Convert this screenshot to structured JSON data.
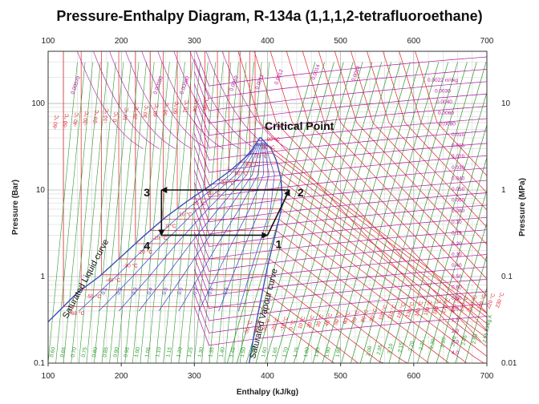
{
  "chart_data": {
    "type": "line",
    "title": "Pressure-Enthalpy Diagram, R-134a (1,1,1,2-tetrafluoroethane)",
    "xlabel": "Enthalpy (kJ/kg)",
    "ylabel": "Pressure (Bar)",
    "y2label": "Pressure (MPa)",
    "xlim": [
      100,
      700
    ],
    "ylim_bar": [
      0.1,
      400
    ],
    "y_scale": "log",
    "x_ticks": [
      "100",
      "200",
      "300",
      "400",
      "500",
      "600",
      "700"
    ],
    "y_ticks_bar": [
      "0.1",
      "1",
      "10",
      "100"
    ],
    "y_ticks_mpa": [
      "0.01",
      "0.1",
      "1",
      "10"
    ],
    "grid": true,
    "colors": {
      "saturation": "#3b4fb8",
      "isotherm": "#e0242c",
      "isentrope": "#2f9a2f",
      "isochore": "#b0189a",
      "quality": "#3344cc",
      "cycle": "#111111"
    },
    "saturation_dome": {
      "liquid": {
        "h": [
          100,
          140,
          170,
          200,
          230,
          260,
          290,
          320,
          350,
          375,
          390
        ],
        "p": [
          0.3,
          0.65,
          1.0,
          1.7,
          2.9,
          4.8,
          7.4,
          11.0,
          17.0,
          26.0,
          40.6
        ]
      },
      "vapour": {
        "h": [
          390,
          405,
          412,
          418,
          420,
          418,
          410,
          400,
          392,
          383,
          375
        ],
        "p": [
          40.6,
          30.0,
          22.0,
          14.0,
          9.0,
          5.5,
          2.9,
          1.3,
          0.6,
          0.25,
          0.1
        ]
      }
    },
    "cycle": {
      "points": [
        {
          "label": "1",
          "h": 400,
          "p": 3.0
        },
        {
          "label": "2",
          "h": 430,
          "p": 10.0
        },
        {
          "label": "3",
          "h": 255,
          "p": 10.0
        },
        {
          "label": "4",
          "h": 255,
          "p": 3.0
        }
      ]
    },
    "annotations": {
      "critical_point": "Critical Point",
      "saturated_liquid": "Saturated Liquid curve",
      "saturated_vapour": "Saturated Vapour curve"
    },
    "isotherm_labels_dome": [
      "90 °C",
      "80 °C",
      "70 °C",
      "60 °C",
      "50 °C",
      "40 °C",
      "30 °C",
      "20 °C",
      "10 °C",
      "0 °C",
      "-10 °C",
      "-20 °C",
      "-30 °C",
      "-40 °C",
      "-50 °C",
      "-60 °C"
    ],
    "isotherm_labels_top": [
      "-60 °C",
      "-50 °C",
      "-40 °C",
      "-30 °C",
      "-20 °C",
      "-10 °C",
      "0 °C",
      "10 °C",
      "20 °C",
      "30 °C",
      "40 °C",
      "50 °C",
      "60 °C",
      "70 °C",
      "80 °C",
      "90 °C"
    ],
    "isotherm_labels_vapour": [
      "-50 °C",
      "-40 °C",
      "-30 °C",
      "-20 °C",
      "-10 °C",
      "0 °C",
      "10 °C",
      "20 °C",
      "30 °C",
      "40 °C",
      "50 °C",
      "60 °C",
      "70 °C",
      "80 °C",
      "90 °C",
      "100 °C",
      "110 °C",
      "120 °C",
      "130 °C",
      "140 °C",
      "150 °C",
      "160 °C",
      "170 °C",
      "180 °C",
      "190 °C",
      "200 °C",
      "210 °C",
      "220 °C",
      "230 °C"
    ],
    "quality_labels": [
      "0.1",
      "0.2",
      "0.3",
      "0.4",
      "0.5",
      "0.6",
      "0.7",
      "0.8",
      "0.9"
    ],
    "isentrope_labels": [
      "0.60",
      "0.65",
      "0.70",
      "0.75",
      "0.80",
      "0.85",
      "0.90",
      "0.95",
      "1.00",
      "1.05",
      "1.10",
      "1.15",
      "1.20",
      "1.25",
      "1.30",
      "1.35",
      "1.40",
      "1.45",
      "1.50",
      "1.55",
      "1.60",
      "1.65",
      "1.70",
      "1.75",
      "1.80",
      "1.85",
      "1.90",
      "1.95",
      "2.00",
      "2.05",
      "2.10",
      "2.15",
      "2.20",
      "2.25",
      "2.30",
      "2.35",
      "2.40",
      "2.45",
      "2.50",
      "2.55 kJ/kg K"
    ],
    "isochore_labels": [
      "0.0022 m³/kg",
      "0.0030",
      "0.0040",
      "0.0060",
      "0.0080",
      "0.010",
      "0.015",
      "0.020",
      "0.030",
      "0.040",
      "0.050",
      "0.060",
      "0.080",
      "0.10",
      "0.15",
      "0.20",
      "0.30",
      "0.40",
      "0.50",
      "0.60",
      "0.80",
      "1.0",
      "1.5",
      "2.0",
      "3.0",
      "4.0"
    ],
    "isochore_labels_top": [
      "0.00070",
      "0.00080",
      "0.00090",
      "0.0010",
      "0.0011",
      "0.0012",
      "0.0014",
      "0.0018"
    ]
  }
}
